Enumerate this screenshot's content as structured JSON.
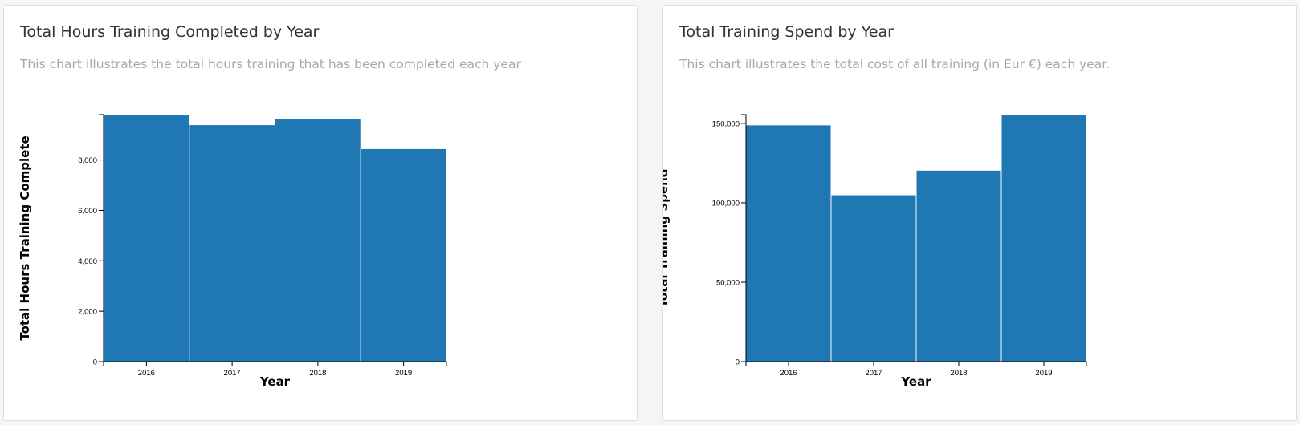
{
  "cards": [
    {
      "title": "Total Hours Training Completed by Year",
      "subtitle": "This chart illustrates the total hours training that has been completed each year"
    },
    {
      "title": "Total Training Spend by Year",
      "subtitle": "This chart illustrates the total cost of all training (in Eur €) each year."
    }
  ],
  "colors": {
    "bar": "#1f77b4",
    "bar_separator": "#ffffff",
    "axis": "#000000"
  },
  "chart_data": [
    {
      "type": "bar",
      "title": "Total Hours Training Completed by Year",
      "xlabel": "Year",
      "ylabel": "Total Hours Training Complete",
      "categories": [
        "2016",
        "2017",
        "2018",
        "2019"
      ],
      "values": [
        9800,
        9400,
        9650,
        8450
      ],
      "ylim": [
        0,
        9800
      ],
      "yticks": [
        0,
        2000,
        4000,
        6000,
        8000
      ],
      "ytick_labels": [
        "0",
        "2,000",
        "4,000",
        "6,000",
        "8,000"
      ],
      "grid": false,
      "legend": "none"
    },
    {
      "type": "bar",
      "title": "Total Training Spend by Year",
      "xlabel": "Year",
      "ylabel": "Total Training Spend",
      "categories": [
        "2016",
        "2017",
        "2018",
        "2019"
      ],
      "values": [
        149000,
        105000,
        120500,
        155500
      ],
      "ylim": [
        0,
        155500
      ],
      "yticks": [
        0,
        50000,
        100000,
        150000
      ],
      "ytick_labels": [
        "0",
        "50,000",
        "100,000",
        "150,000"
      ],
      "grid": false,
      "legend": "none"
    }
  ]
}
